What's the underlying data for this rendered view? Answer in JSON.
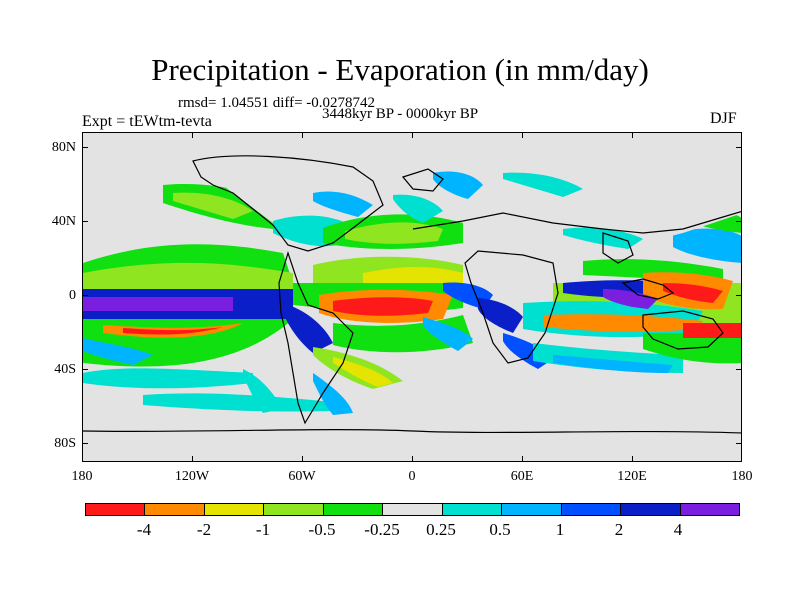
{
  "title": "Precipitation - Evaporation (in mm/day)",
  "stats": "rmsd= 1.04551  diff= -0.0278742",
  "period": "3448kyr BP - 0000kyr BP",
  "experiment": "Expt = tEWtm-tevta",
  "season": "DJF",
  "lat_labels": [
    "80N",
    "40N",
    "0",
    "40S",
    "80S"
  ],
  "lon_labels": [
    "180",
    "120W",
    "60W",
    "0",
    "60E",
    "120E",
    "180"
  ],
  "colorbar": {
    "labels": [
      "-4",
      "-2",
      "-1",
      "-0.5",
      "-0.25",
      "0.25",
      "0.5",
      "1",
      "2",
      "4"
    ],
    "colors": [
      "#ff1a1a",
      "#ff8a00",
      "#e4e400",
      "#8fe620",
      "#10e010",
      "#e3e3e3",
      "#00e0d0",
      "#00b4ff",
      "#0050ff",
      "#0a1fc8",
      "#7a1fe0"
    ]
  }
}
